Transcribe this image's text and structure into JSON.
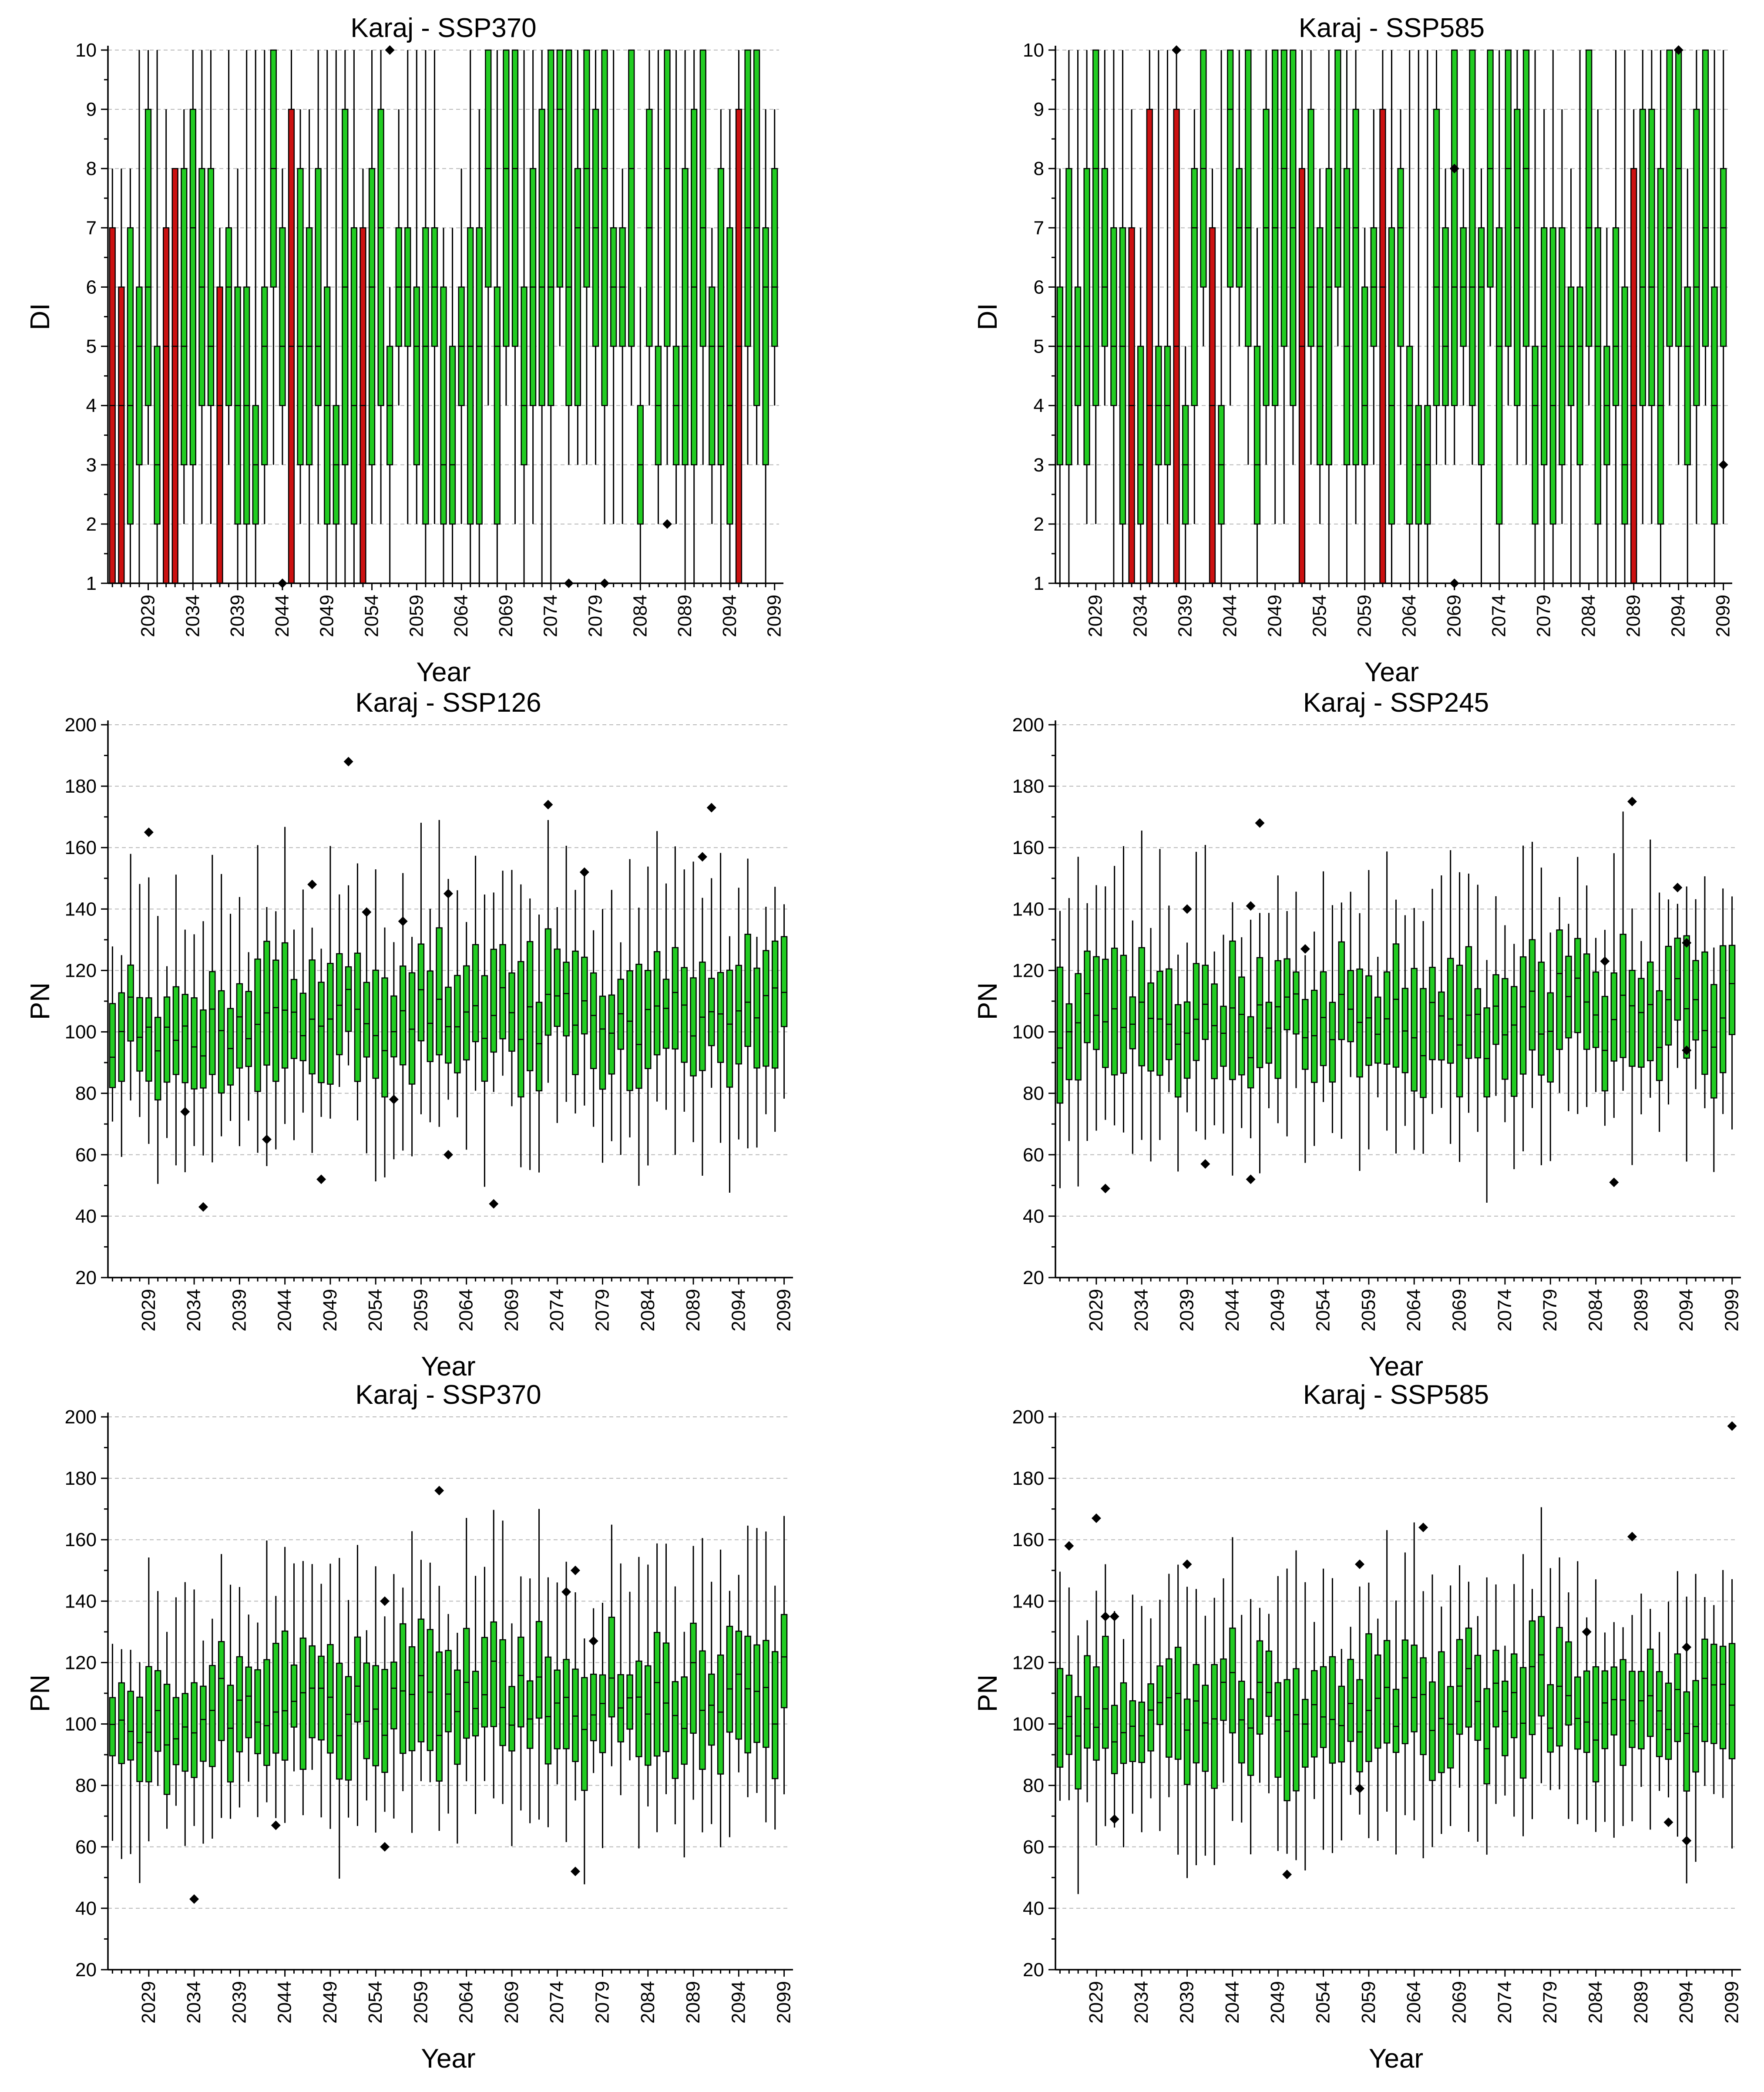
{
  "figure": {
    "type": "box-plot grid",
    "rows": 3,
    "cols": 2
  },
  "colors": {
    "box_normal": "#22cc22",
    "box_extreme": "#cc1111",
    "outlier": "#000000",
    "grid": "#b8b8b8"
  },
  "chart_data": [
    {
      "id": "di_ssp370",
      "type": "box",
      "title": "Karaj - SSP370",
      "xlabel": "Year",
      "ylabel": "DI",
      "ylim": [
        1,
        10
      ],
      "yticks": [
        1,
        2,
        3,
        4,
        5,
        6,
        7,
        8,
        9,
        10
      ],
      "xticks": [
        "2029",
        "2034",
        "2039",
        "2044",
        "2049",
        "2054",
        "2059",
        "2064",
        "2069",
        "2074",
        "2079",
        "2084",
        "2089",
        "2094",
        "2099"
      ],
      "years": [
        2025,
        2099
      ],
      "grid": true,
      "seed": 11,
      "red_years": [
        2025,
        2026,
        2031,
        2032,
        2037,
        2045,
        2053,
        2095
      ],
      "outliers": [
        [
          2044,
          1
        ],
        [
          2056,
          10
        ],
        [
          2076,
          1
        ],
        [
          2080,
          1
        ],
        [
          2087,
          2
        ]
      ]
    },
    {
      "id": "di_ssp585",
      "type": "box",
      "title": "Karaj - SSP585",
      "xlabel": "Year",
      "ylabel": "DI",
      "ylim": [
        1,
        10
      ],
      "yticks": [
        1,
        2,
        3,
        4,
        5,
        6,
        7,
        8,
        9,
        10
      ],
      "xticks": [
        "2029",
        "2034",
        "2039",
        "2044",
        "2049",
        "2054",
        "2059",
        "2064",
        "2069",
        "2074",
        "2079",
        "2084",
        "2089",
        "2094",
        "2099"
      ],
      "years": [
        2025,
        2099
      ],
      "grid": true,
      "seed": 23,
      "red_years": [
        2033,
        2035,
        2038,
        2042,
        2052,
        2061,
        2089
      ],
      "outliers": [
        [
          2038,
          10
        ],
        [
          2069,
          8
        ],
        [
          2069,
          1
        ],
        [
          2094,
          10
        ],
        [
          2099,
          3
        ]
      ]
    },
    {
      "id": "pn_ssp126",
      "type": "box",
      "title": "Karaj - SSP126",
      "xlabel": "Year",
      "ylabel": "PN",
      "ylim": [
        20,
        200
      ],
      "yticks": [
        20,
        40,
        60,
        80,
        100,
        120,
        140,
        160,
        180,
        200
      ],
      "xticks": [
        "2029",
        "2034",
        "2039",
        "2044",
        "2049",
        "2054",
        "2059",
        "2064",
        "2069",
        "2074",
        "2079",
        "2084",
        "2089",
        "2094",
        "2099"
      ],
      "years": [
        2025,
        2099
      ],
      "grid": true,
      "seed": 37,
      "red_years": [],
      "outliers": [
        [
          2029,
          165
        ],
        [
          2033,
          74
        ],
        [
          2035,
          43
        ],
        [
          2042,
          65
        ],
        [
          2047,
          148
        ],
        [
          2048,
          52
        ],
        [
          2051,
          188
        ],
        [
          2053,
          139
        ],
        [
          2056,
          78
        ],
        [
          2057,
          136
        ],
        [
          2062,
          145
        ],
        [
          2062,
          60
        ],
        [
          2067,
          44
        ],
        [
          2073,
          174
        ],
        [
          2077,
          152
        ],
        [
          2090,
          157
        ],
        [
          2091,
          173
        ]
      ]
    },
    {
      "id": "pn_ssp245",
      "type": "box",
      "title": "Karaj - SSP245",
      "xlabel": "Year",
      "ylabel": "PN",
      "ylim": [
        20,
        200
      ],
      "yticks": [
        20,
        40,
        60,
        80,
        100,
        120,
        140,
        160,
        180,
        200
      ],
      "xticks": [
        "2029",
        "2034",
        "2039",
        "2044",
        "2049",
        "2054",
        "2059",
        "2064",
        "2069",
        "2074",
        "2079",
        "2084",
        "2089",
        "2094",
        "2099"
      ],
      "years": [
        2025,
        2099
      ],
      "grid": true,
      "seed": 41,
      "red_years": [],
      "outliers": [
        [
          2030,
          49
        ],
        [
          2039,
          140
        ],
        [
          2041,
          57
        ],
        [
          2046,
          141
        ],
        [
          2046,
          52
        ],
        [
          2047,
          168
        ],
        [
          2052,
          127
        ],
        [
          2085,
          123
        ],
        [
          2086,
          51
        ],
        [
          2088,
          175
        ],
        [
          2093,
          147
        ],
        [
          2094,
          129
        ],
        [
          2094,
          94
        ]
      ]
    },
    {
      "id": "pn_ssp370",
      "type": "box",
      "title": "Karaj - SSP370",
      "xlabel": "Year",
      "ylabel": "PN",
      "ylim": [
        20,
        200
      ],
      "yticks": [
        20,
        40,
        60,
        80,
        100,
        120,
        140,
        160,
        180,
        200
      ],
      "xticks": [
        "2029",
        "2034",
        "2039",
        "2044",
        "2049",
        "2054",
        "2059",
        "2064",
        "2069",
        "2074",
        "2079",
        "2084",
        "2089",
        "2094",
        "2099"
      ],
      "years": [
        2025,
        2099
      ],
      "grid": true,
      "seed": 53,
      "red_years": [],
      "outliers": [
        [
          2034,
          43
        ],
        [
          2043,
          67
        ],
        [
          2055,
          140
        ],
        [
          2055,
          60
        ],
        [
          2061,
          176
        ],
        [
          2075,
          143
        ],
        [
          2076,
          150
        ],
        [
          2076,
          52
        ],
        [
          2078,
          127
        ]
      ]
    },
    {
      "id": "pn_ssp585",
      "type": "box",
      "title": "Karaj - SSP585",
      "xlabel": "Year",
      "ylabel": "PN",
      "ylim": [
        20,
        200
      ],
      "yticks": [
        20,
        40,
        60,
        80,
        100,
        120,
        140,
        160,
        180,
        200
      ],
      "xticks": [
        "2029",
        "2034",
        "2039",
        "2044",
        "2049",
        "2054",
        "2059",
        "2064",
        "2069",
        "2074",
        "2079",
        "2084",
        "2089",
        "2094",
        "2099"
      ],
      "years": [
        2025,
        2099
      ],
      "grid": true,
      "seed": 67,
      "red_years": [],
      "outliers": [
        [
          2026,
          158
        ],
        [
          2029,
          167
        ],
        [
          2030,
          135
        ],
        [
          2031,
          135
        ],
        [
          2031,
          69
        ],
        [
          2039,
          152
        ],
        [
          2050,
          51
        ],
        [
          2058,
          152
        ],
        [
          2058,
          79
        ],
        [
          2065,
          164
        ],
        [
          2083,
          130
        ],
        [
          2088,
          161
        ],
        [
          2092,
          68
        ],
        [
          2094,
          125
        ],
        [
          2094,
          62
        ],
        [
          2099,
          197
        ]
      ]
    }
  ]
}
